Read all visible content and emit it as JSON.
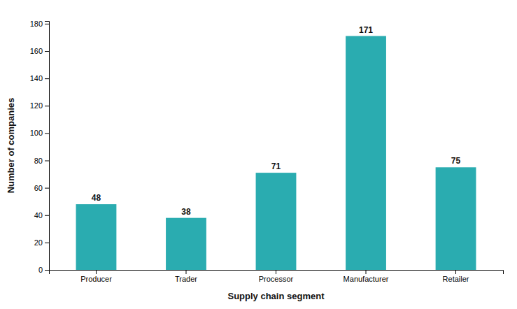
{
  "chart_data": {
    "type": "bar",
    "categories": [
      "Producer",
      "Trader",
      "Processor",
      "Manufacturer",
      "Retailer"
    ],
    "values": [
      48,
      38,
      71,
      171,
      75
    ],
    "color": "#2AACB0",
    "xlabel": "Supply chain segment",
    "ylabel": "Number of companies",
    "ylim": [
      0,
      182
    ],
    "yticks": [
      0,
      20,
      40,
      60,
      80,
      100,
      120,
      140,
      160,
      180
    ],
    "grid": false,
    "data_labels": true
  }
}
